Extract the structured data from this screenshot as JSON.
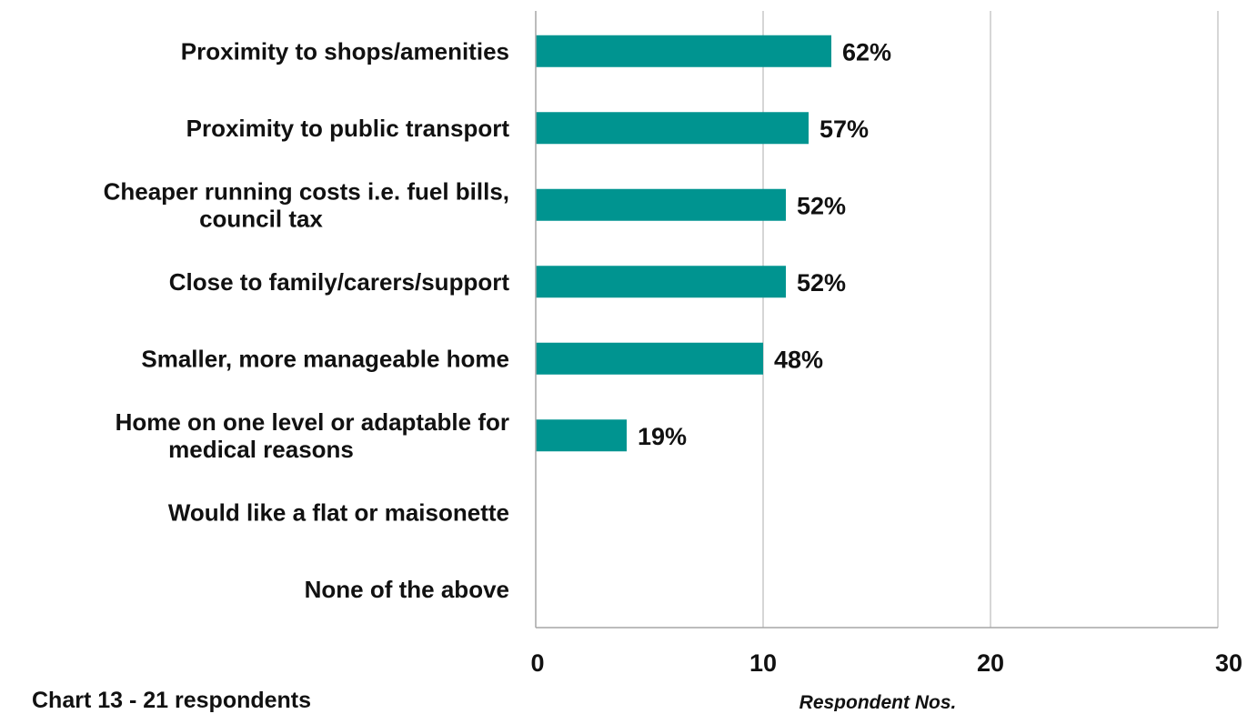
{
  "chart_data": {
    "type": "bar",
    "orientation": "horizontal",
    "categories": [
      [
        "Proximity to shops/amenities"
      ],
      [
        "Proximity to public transport"
      ],
      [
        "Cheaper running costs i.e. fuel bills,",
        "council tax"
      ],
      [
        "Close to family/carers/support"
      ],
      [
        "Smaller, more manageable home"
      ],
      [
        "Home on one level or adaptable for",
        "medical reasons"
      ],
      [
        "Would like a flat or maisonette"
      ],
      [
        "None of the above"
      ]
    ],
    "values": [
      13,
      12,
      11,
      11,
      10,
      4,
      0,
      0
    ],
    "data_labels": [
      "62%",
      "57%",
      "52%",
      "52%",
      "48%",
      "19%",
      "",
      ""
    ],
    "xlim": [
      0,
      30
    ],
    "xticks": [
      0,
      10,
      20,
      30
    ],
    "xtick_labels": [
      "0",
      "10",
      "20",
      "30"
    ],
    "xlabel": "Respondent  Nos.",
    "grid": "vertical",
    "legend": "none",
    "bar_color": "#009490",
    "caption": "Chart 13 - 21 respondents"
  }
}
